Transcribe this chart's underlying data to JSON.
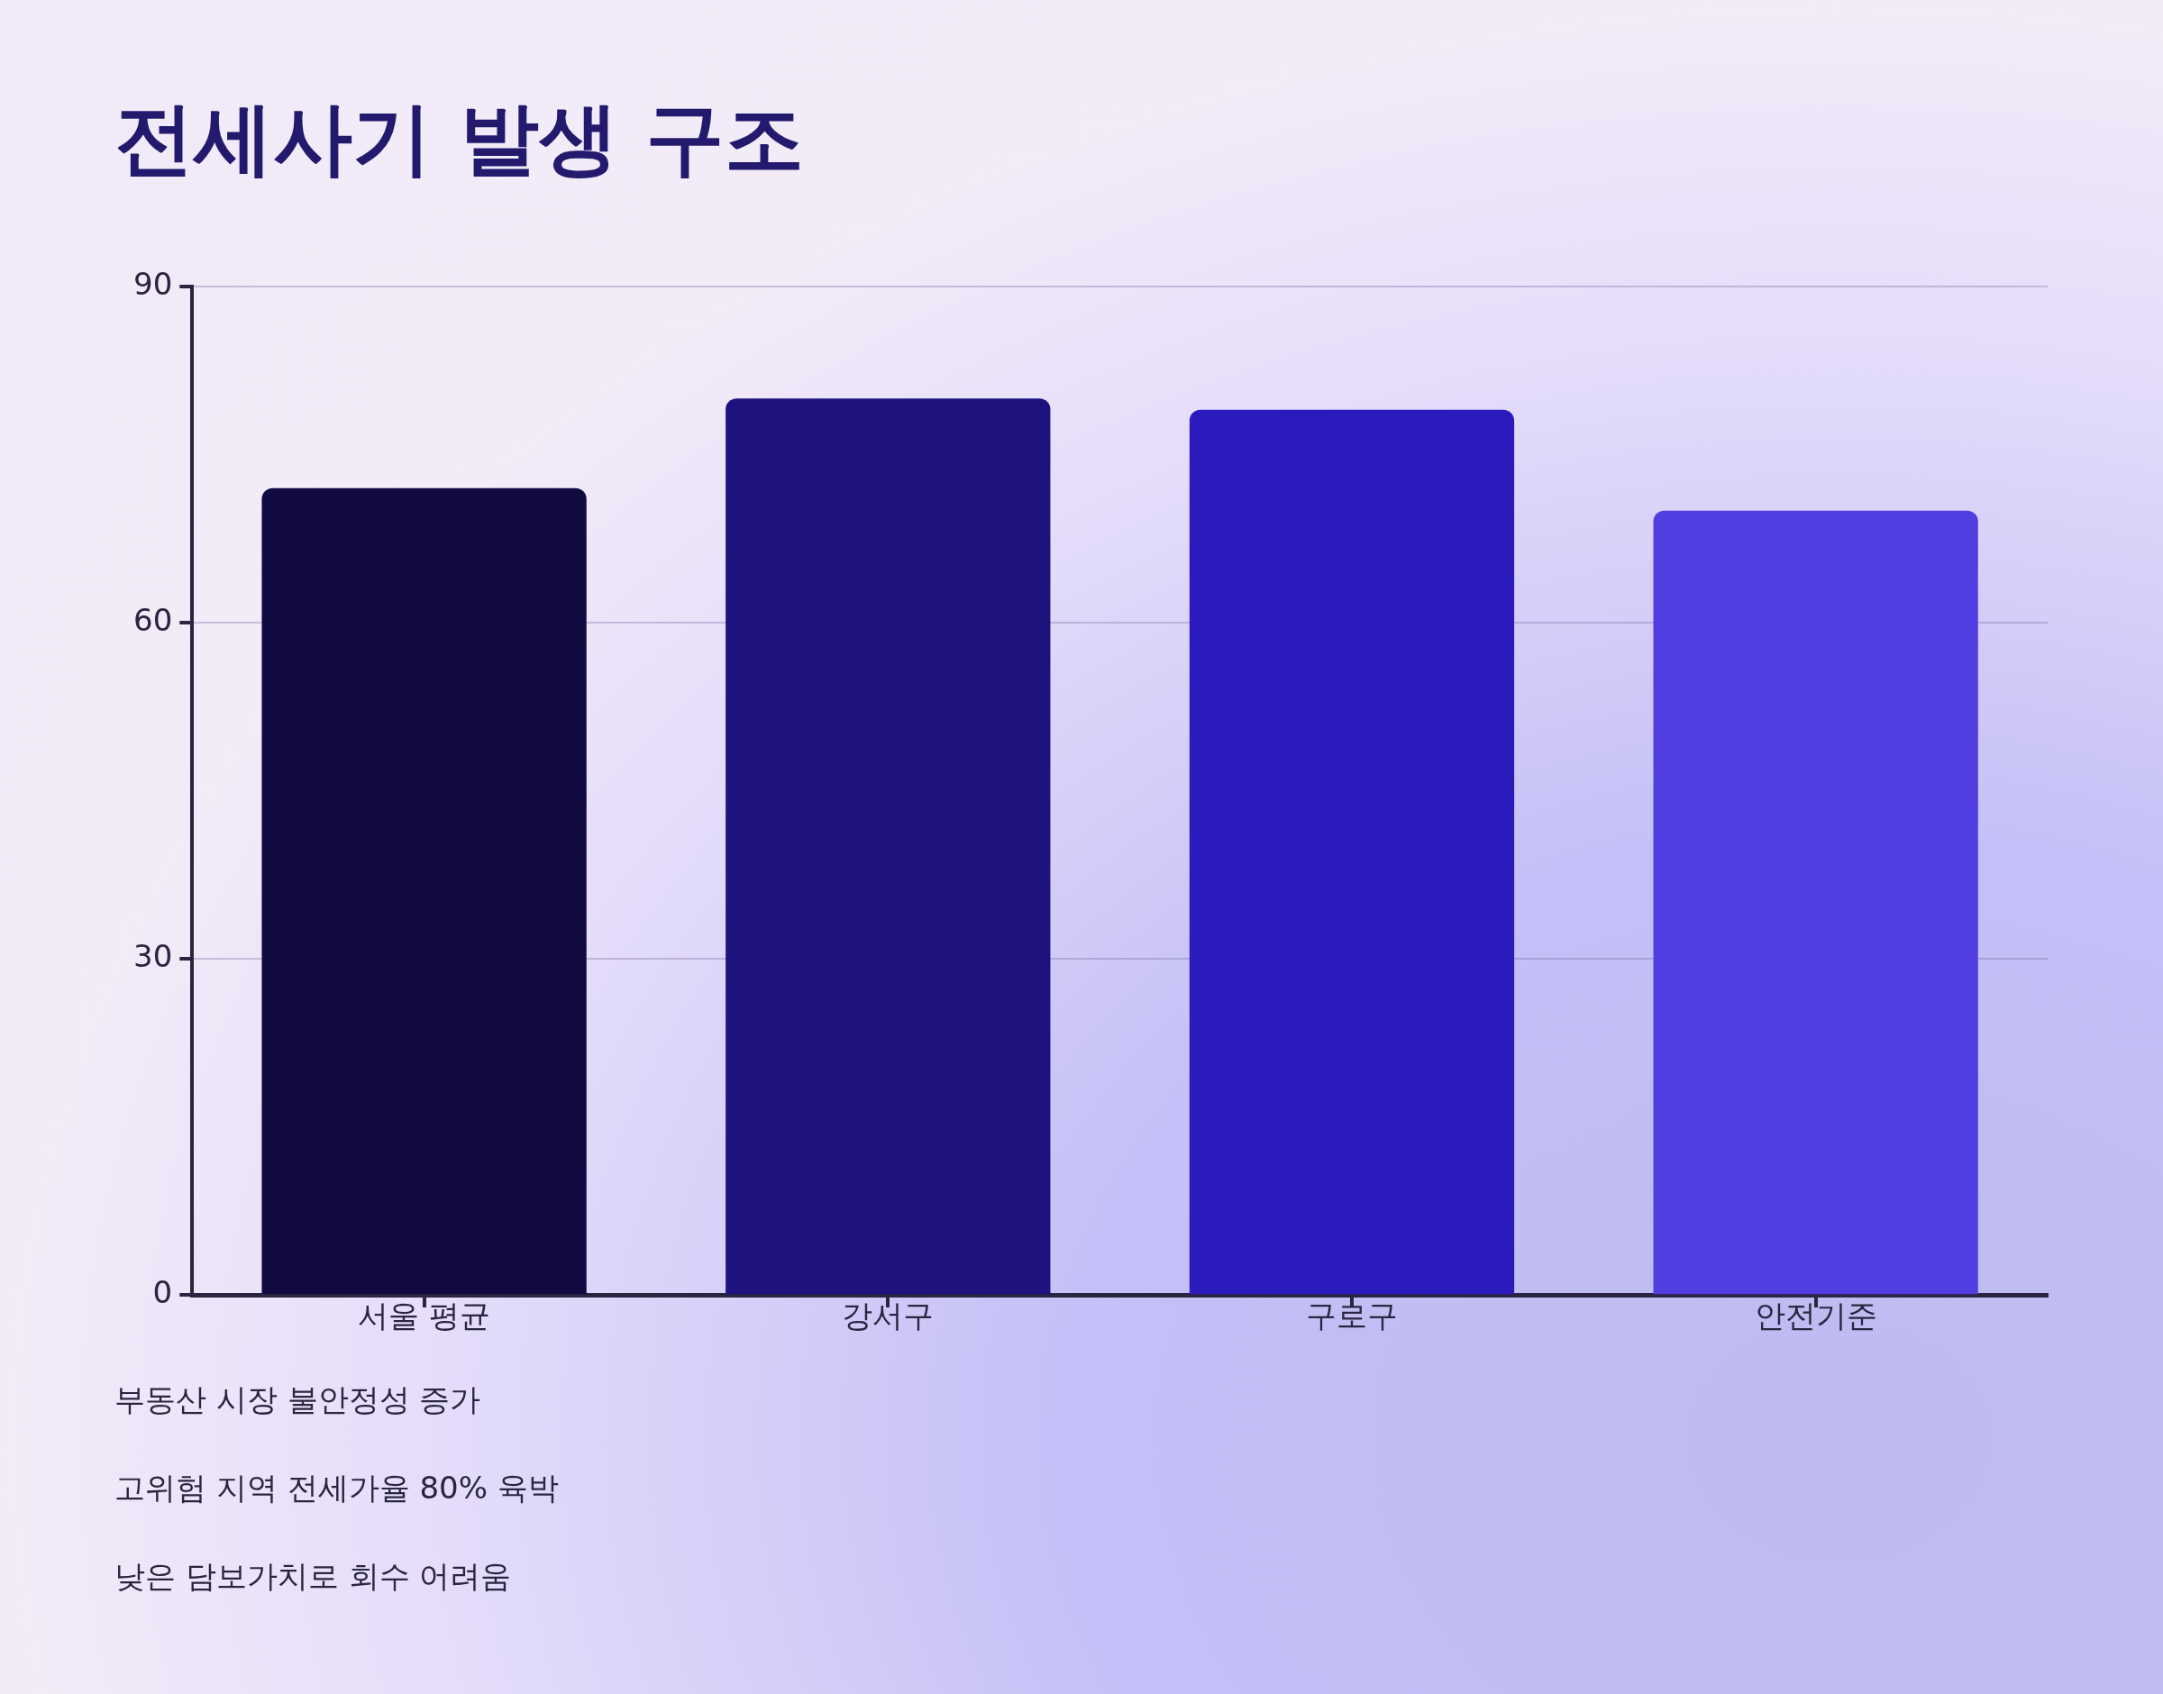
{
  "chart_data": {
    "type": "bar",
    "title": "전세사기 발생 구조",
    "categories": [
      "서울 평균",
      "강서구",
      "구로구",
      "안전기준"
    ],
    "values": [
      72,
      80,
      79,
      70
    ],
    "colors": [
      "#100a40",
      "#1e137e",
      "#2b1bbd",
      "#513ee0"
    ],
    "ylim": [
      0,
      90
    ],
    "yticks": [
      0,
      30,
      60,
      90
    ],
    "grid": "y",
    "legend": false,
    "annotations": [
      "부동산 시장 불안정성 증가",
      "고위험 지역 전세가율 80% 육박",
      "낮은 담보가치로 회수 어려움"
    ]
  }
}
